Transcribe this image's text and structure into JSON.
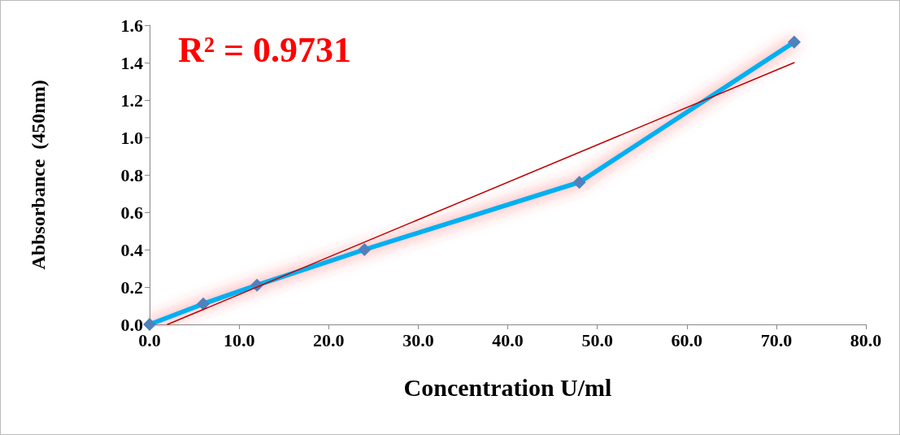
{
  "chart_data": {
    "type": "line",
    "xlabel": "Concentration U/ml",
    "ylabel": "Abbsorbance  (450nm)",
    "annotations": [
      "R² = 0.9731"
    ],
    "x": [
      0,
      6,
      12,
      24,
      48,
      72
    ],
    "series": [
      {
        "color": "#00b0f0",
        "values": [
          0,
          0.11,
          0.21,
          0.4,
          0.76,
          1.51
        ],
        "marker": "diamond"
      },
      {
        "type": "line",
        "color": "#c00000",
        "x": [
          2,
          72
        ],
        "values": [
          0,
          1.4
        ],
        "marker": "none"
      }
    ],
    "xlim": [
      0,
      80
    ],
    "xticks": [
      {
        "value": 0,
        "label": "0.0"
      },
      {
        "value": 10,
        "label": "10.0"
      },
      {
        "value": 20,
        "label": "20.0"
      },
      {
        "value": 30,
        "label": "30.0"
      },
      {
        "value": 40,
        "label": "40.0"
      },
      {
        "value": 50,
        "label": "50.0"
      },
      {
        "value": 60,
        "label": "60.0"
      },
      {
        "value": 70,
        "label": "70.0"
      },
      {
        "value": 80,
        "label": "80.0"
      }
    ],
    "ylim": [
      0,
      1.6
    ],
    "yticks": [
      {
        "value": 0,
        "label": "0.0"
      },
      {
        "value": 0.2,
        "label": "0.2"
      },
      {
        "value": 0.4,
        "label": "0.4"
      },
      {
        "value": 0.6,
        "label": "0.6"
      },
      {
        "value": 0.8,
        "label": "0.8"
      },
      {
        "value": 1,
        "label": "1.0"
      },
      {
        "value": 1.2,
        "label": "1.2"
      },
      {
        "value": 1.4,
        "label": "1.4"
      },
      {
        "value": 1.6,
        "label": "1.6"
      }
    ],
    "grid": false,
    "line_style": "solid"
  }
}
